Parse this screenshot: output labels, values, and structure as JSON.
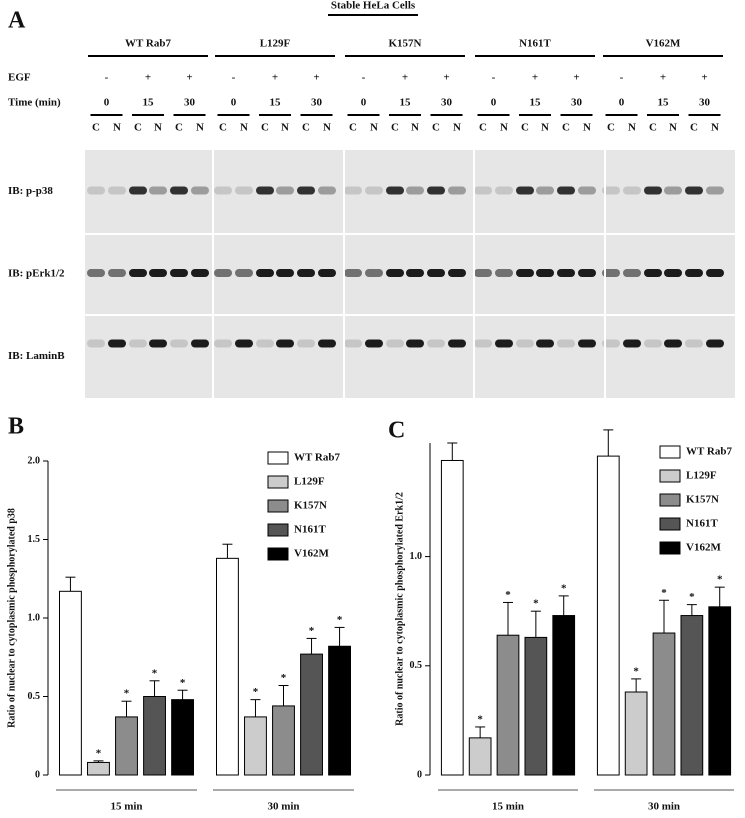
{
  "panel_a": {
    "label": "A",
    "title": "Stable HeLa Cells",
    "constructs": [
      "WT Rab7",
      "L129F",
      "K157N",
      "N161T",
      "V162M"
    ],
    "egf_label": "EGF",
    "egf": [
      "-",
      "+",
      "+"
    ],
    "time_label": "Time (min)",
    "times": [
      "0",
      "15",
      "30"
    ],
    "fractions": [
      "C",
      "N"
    ],
    "blots": [
      "IB: p-p38",
      "IB: pErk1/2",
      "IB: LaminB"
    ]
  },
  "chart_data": [
    {
      "type": "bar",
      "panel_label": "B",
      "y_label": "Ratio of nuclear to cytoplasmic  phosphorylated p38",
      "categories": [
        "15 min",
        "30 min"
      ],
      "ylim": [
        0,
        2.0
      ],
      "yticks": [
        0,
        0.5,
        {
          "value": 1.0,
          "label": "1.0"
        },
        1.5,
        {
          "value": 2.0,
          "label": "2.0"
        }
      ],
      "series": [
        {
          "name": "WT Rab7",
          "color": "#ffffff",
          "values": [
            1.17,
            1.38
          ],
          "errors": [
            0.09,
            0.09
          ]
        },
        {
          "name": "L129F",
          "color": "#cccccc",
          "values": [
            0.08,
            0.37
          ],
          "errors": [
            0.01,
            0.11
          ],
          "significance": [
            "*",
            "*"
          ]
        },
        {
          "name": "K157N",
          "color": "#8c8c8c",
          "values": [
            0.37,
            0.44
          ],
          "errors": [
            0.1,
            0.13
          ],
          "significance": [
            "*",
            "*"
          ]
        },
        {
          "name": "N161T",
          "color": "#555555",
          "values": [
            0.5,
            0.77
          ],
          "errors": [
            0.1,
            0.1
          ],
          "significance": [
            "*",
            "*"
          ]
        },
        {
          "name": "V162M",
          "color": "#000000",
          "values": [
            0.48,
            0.82
          ],
          "errors": [
            0.06,
            0.12
          ],
          "significance": [
            "*",
            "*"
          ]
        }
      ]
    },
    {
      "type": "bar",
      "panel_label": "C",
      "y_label": "Ratio of nuclear to cytoplasmic  phosphorylated Erk1/2",
      "categories": [
        "15 min",
        "30 min"
      ],
      "ylim": [
        0,
        1.52
      ],
      "yticks": [
        0,
        0.5,
        {
          "value": 1.0,
          "label": "1.0"
        }
      ],
      "series": [
        {
          "name": "WT Rab7",
          "color": "#ffffff",
          "values": [
            1.44,
            1.46
          ],
          "errors": [
            0.08,
            0.12
          ]
        },
        {
          "name": "L129F",
          "color": "#cccccc",
          "values": [
            0.17,
            0.38
          ],
          "errors": [
            0.05,
            0.06
          ],
          "significance": [
            "*",
            "*"
          ]
        },
        {
          "name": "K157N",
          "color": "#8c8c8c",
          "values": [
            0.64,
            0.65
          ],
          "errors": [
            0.15,
            0.15
          ],
          "significance": [
            "*",
            "*"
          ]
        },
        {
          "name": "N161T",
          "color": "#555555",
          "values": [
            0.63,
            0.73
          ],
          "errors": [
            0.12,
            0.05
          ],
          "significance": [
            "*",
            "*"
          ]
        },
        {
          "name": "V162M",
          "color": "#000000",
          "values": [
            0.73,
            0.77
          ],
          "errors": [
            0.09,
            0.09
          ],
          "significance": [
            "*",
            "*"
          ]
        }
      ]
    }
  ]
}
